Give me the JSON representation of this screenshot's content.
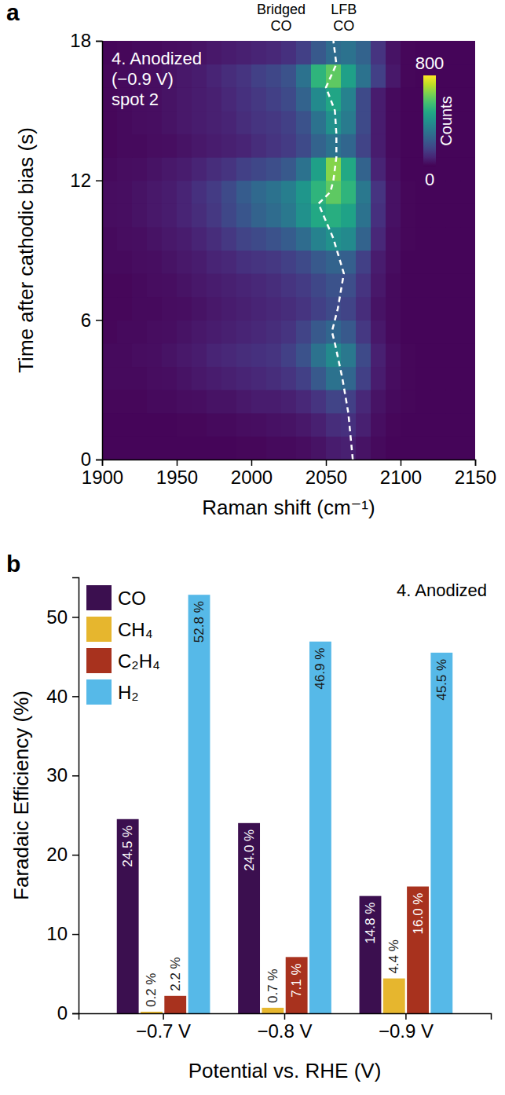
{
  "chart_data": [
    {
      "type": "heatmap",
      "panel_label": "a",
      "title": "4. Anodized",
      "subtitle": "(−0.9 V)",
      "note": "spot 2",
      "annotations": [
        {
          "text": "Bridged CO",
          "x": 2020
        },
        {
          "text": "LFB CO",
          "x": 2062
        }
      ],
      "x_label": "Raman shift (cm⁻¹)",
      "y_label": "Time after cathodic bias (s)",
      "xlim": [
        1900,
        2150
      ],
      "xticks": [
        1900,
        1950,
        2000,
        2050,
        2100,
        2150
      ],
      "ylim": [
        0,
        18
      ],
      "yticks": [
        0,
        6,
        12,
        18
      ],
      "x": [
        1905,
        1915,
        1925,
        1935,
        1945,
        1955,
        1965,
        1975,
        1985,
        1995,
        2005,
        2015,
        2025,
        2035,
        2045,
        2055,
        2065,
        2075,
        2085,
        2095,
        2105,
        2115,
        2125,
        2135,
        2145
      ],
      "y": [
        0.5,
        1.5,
        2.5,
        3.5,
        4.5,
        5.5,
        6.5,
        7.5,
        8.5,
        9.5,
        10.5,
        11.5,
        12.5,
        13.5,
        14.5,
        15.5,
        16.5,
        17.5
      ],
      "values": [
        [
          10,
          10,
          10,
          10,
          10,
          10,
          10,
          10,
          10,
          15,
          15,
          20,
          20,
          25,
          40,
          60,
          70,
          40,
          20,
          10,
          10,
          10,
          10,
          10,
          10
        ],
        [
          10,
          10,
          10,
          10,
          10,
          15,
          15,
          20,
          20,
          25,
          30,
          35,
          40,
          50,
          70,
          100,
          110,
          70,
          30,
          15,
          10,
          10,
          10,
          10,
          10
        ],
        [
          15,
          15,
          15,
          20,
          20,
          25,
          30,
          40,
          40,
          50,
          60,
          60,
          70,
          90,
          120,
          160,
          150,
          90,
          40,
          20,
          15,
          10,
          10,
          10,
          10
        ],
        [
          20,
          20,
          20,
          25,
          30,
          40,
          50,
          60,
          70,
          80,
          90,
          100,
          120,
          150,
          220,
          300,
          260,
          150,
          60,
          25,
          15,
          10,
          10,
          10,
          10
        ],
        [
          20,
          20,
          25,
          30,
          40,
          50,
          60,
          80,
          90,
          100,
          110,
          120,
          150,
          200,
          300,
          380,
          320,
          180,
          70,
          30,
          15,
          10,
          10,
          10,
          10
        ],
        [
          15,
          20,
          20,
          25,
          30,
          40,
          50,
          60,
          70,
          80,
          90,
          100,
          120,
          160,
          220,
          260,
          220,
          130,
          50,
          20,
          10,
          10,
          10,
          10,
          10
        ],
        [
          15,
          15,
          20,
          20,
          25,
          30,
          40,
          50,
          60,
          70,
          80,
          90,
          100,
          120,
          150,
          180,
          160,
          100,
          40,
          20,
          10,
          10,
          10,
          10,
          10
        ],
        [
          15,
          15,
          20,
          25,
          30,
          40,
          50,
          60,
          70,
          80,
          90,
          100,
          120,
          140,
          170,
          200,
          190,
          120,
          50,
          20,
          10,
          10,
          10,
          10,
          10
        ],
        [
          20,
          20,
          25,
          30,
          40,
          50,
          60,
          80,
          90,
          110,
          120,
          130,
          150,
          180,
          220,
          250,
          240,
          150,
          60,
          25,
          10,
          10,
          10,
          10,
          10
        ],
        [
          20,
          25,
          30,
          40,
          50,
          60,
          80,
          100,
          130,
          160,
          180,
          200,
          230,
          280,
          350,
          400,
          380,
          250,
          90,
          30,
          15,
          10,
          10,
          10,
          10
        ],
        [
          25,
          30,
          40,
          50,
          60,
          80,
          100,
          130,
          170,
          210,
          250,
          280,
          320,
          400,
          480,
          500,
          460,
          300,
          110,
          35,
          15,
          10,
          10,
          10,
          10
        ],
        [
          25,
          30,
          40,
          50,
          60,
          80,
          110,
          140,
          180,
          230,
          270,
          300,
          340,
          420,
          520,
          600,
          520,
          320,
          120,
          35,
          15,
          10,
          10,
          10,
          10
        ],
        [
          20,
          25,
          30,
          40,
          50,
          60,
          80,
          100,
          120,
          150,
          170,
          190,
          220,
          300,
          450,
          650,
          480,
          250,
          80,
          25,
          10,
          10,
          10,
          10,
          10
        ],
        [
          15,
          20,
          20,
          25,
          30,
          40,
          50,
          60,
          70,
          80,
          100,
          120,
          140,
          180,
          250,
          300,
          260,
          160,
          60,
          20,
          10,
          10,
          10,
          10,
          10
        ],
        [
          15,
          20,
          25,
          30,
          40,
          50,
          60,
          70,
          80,
          100,
          120,
          130,
          150,
          200,
          300,
          400,
          330,
          180,
          60,
          20,
          10,
          10,
          10,
          10,
          10
        ],
        [
          15,
          20,
          25,
          30,
          40,
          50,
          60,
          70,
          90,
          110,
          130,
          150,
          180,
          250,
          380,
          470,
          350,
          180,
          60,
          20,
          10,
          10,
          10,
          10,
          10
        ],
        [
          15,
          20,
          25,
          30,
          40,
          50,
          60,
          80,
          100,
          120,
          150,
          170,
          200,
          300,
          520,
          600,
          450,
          300,
          150,
          50,
          15,
          10,
          10,
          10,
          10
        ],
        [
          10,
          15,
          20,
          20,
          25,
          30,
          40,
          50,
          60,
          70,
          80,
          90,
          110,
          150,
          220,
          280,
          300,
          250,
          120,
          40,
          15,
          10,
          10,
          10,
          10
        ]
      ],
      "colorbar": {
        "range": [
          0,
          800
        ],
        "ticks": [
          800,
          0
        ],
        "label": "Counts"
      },
      "series": [
        {
          "type": "line",
          "line_style": "dashed",
          "color": "#ffffff",
          "x": [
            2068,
            2065,
            2061,
            2056,
            2054,
            2058,
            2062,
            2055,
            2045,
            2053,
            2055,
            2057,
            2057,
            2056,
            2050,
            2057,
            2055
          ],
          "values": [
            0,
            2,
            3.5,
            5,
            5.5,
            6.5,
            8,
            9.5,
            11,
            11.5,
            12,
            13,
            14,
            15,
            16,
            17,
            18
          ]
        }
      ]
    },
    {
      "type": "bar",
      "panel_label": "b",
      "title": "4. Anodized",
      "x_label": "Potential vs. RHE (V)",
      "y_label": "Faradaic Efficiency (%)",
      "categories": [
        "−0.7 V",
        "−0.8 V",
        "−0.9 V"
      ],
      "ylim": [
        0,
        55
      ],
      "yticks": [
        0,
        10,
        20,
        30,
        40,
        50
      ],
      "legend": "upper left",
      "data_labels": true,
      "series": [
        {
          "name": "CO",
          "color": "#3b0f4f",
          "values": [
            24.5,
            24.0,
            14.8
          ],
          "value_labels": [
            "24.5 %",
            "24.0 %",
            "14.8 %"
          ]
        },
        {
          "name": "CH₄",
          "color": "#e6b62e",
          "values": [
            0.2,
            0.7,
            4.4
          ],
          "value_labels": [
            "0.2 %",
            "0.7 %",
            "4.4 %"
          ]
        },
        {
          "name": "C₂H₄",
          "color": "#a8321e",
          "values": [
            2.2,
            7.1,
            16.0
          ],
          "value_labels": [
            "2.2 %",
            "7.1 %",
            "16.0 %"
          ]
        },
        {
          "name": "H₂",
          "color": "#56b9e8",
          "values": [
            52.8,
            46.9,
            45.5
          ],
          "value_labels": [
            "52.8 %",
            "46.9 %",
            "45.5 %"
          ]
        }
      ]
    }
  ]
}
